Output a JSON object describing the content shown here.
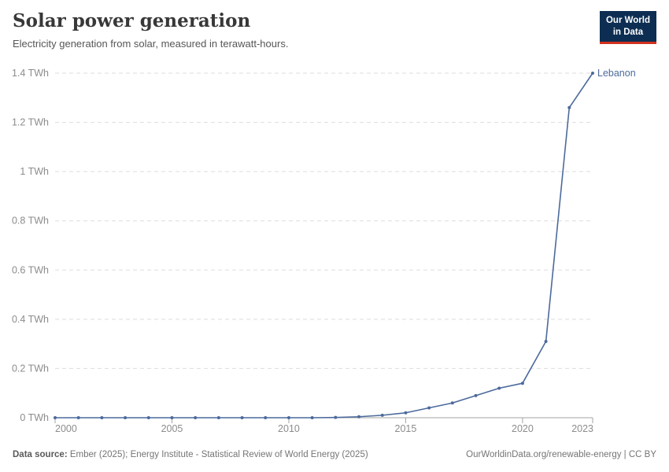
{
  "header": {
    "title": "Solar power generation",
    "subtitle": "Electricity generation from solar, measured in terawatt-hours.",
    "logo": {
      "line1": "Our World",
      "line2": "in Data"
    }
  },
  "footer": {
    "source_label": "Data source:",
    "source_text": " Ember (2025); Energy Institute - Statistical Review of World Energy (2025)",
    "link_text": "OurWorldinData.org/renewable-energy | CC BY"
  },
  "chart_data": {
    "type": "line",
    "title": "Solar power generation",
    "unit": "TWh",
    "xlabel": "",
    "ylabel": "",
    "xlim": [
      2000,
      2023
    ],
    "ylim": [
      0,
      1.4
    ],
    "grid": "horizontal-dashed",
    "legend_position": "end-of-line-label",
    "colors": {
      "line": "#4c6a9c",
      "gridline": "#dedede",
      "axis": "#a3a3a3",
      "tick_label": "#8c8c8c"
    },
    "yticks": [
      {
        "value": 0,
        "label": "0 TWh"
      },
      {
        "value": 0.2,
        "label": "0.2 TWh"
      },
      {
        "value": 0.4,
        "label": "0.4 TWh"
      },
      {
        "value": 0.6,
        "label": "0.6 TWh"
      },
      {
        "value": 0.8,
        "label": "0.8 TWh"
      },
      {
        "value": 1,
        "label": "1 TWh"
      },
      {
        "value": 1.2,
        "label": "1.2 TWh"
      },
      {
        "value": 1.4,
        "label": "1.4 TWh"
      }
    ],
    "xticks": [
      {
        "value": 2000,
        "label": "2000",
        "anchor": "start"
      },
      {
        "value": 2005,
        "label": "2005",
        "anchor": "middle"
      },
      {
        "value": 2010,
        "label": "2010",
        "anchor": "middle"
      },
      {
        "value": 2015,
        "label": "2015",
        "anchor": "middle"
      },
      {
        "value": 2020,
        "label": "2020",
        "anchor": "middle"
      },
      {
        "value": 2023,
        "label": "2023",
        "anchor": "end"
      }
    ],
    "series": [
      {
        "name": "Lebanon",
        "color": "#4c6a9c",
        "x": [
          2000,
          2001,
          2002,
          2003,
          2004,
          2005,
          2006,
          2007,
          2008,
          2009,
          2010,
          2011,
          2012,
          2013,
          2014,
          2015,
          2016,
          2017,
          2018,
          2019,
          2020,
          2021,
          2022,
          2023
        ],
        "values": [
          0,
          0,
          0,
          0,
          0,
          0,
          0,
          0,
          0,
          0,
          0,
          0,
          0.001,
          0.004,
          0.01,
          0.02,
          0.04,
          0.06,
          0.09,
          0.12,
          0.14,
          0.31,
          1.26,
          1.4
        ]
      }
    ]
  }
}
